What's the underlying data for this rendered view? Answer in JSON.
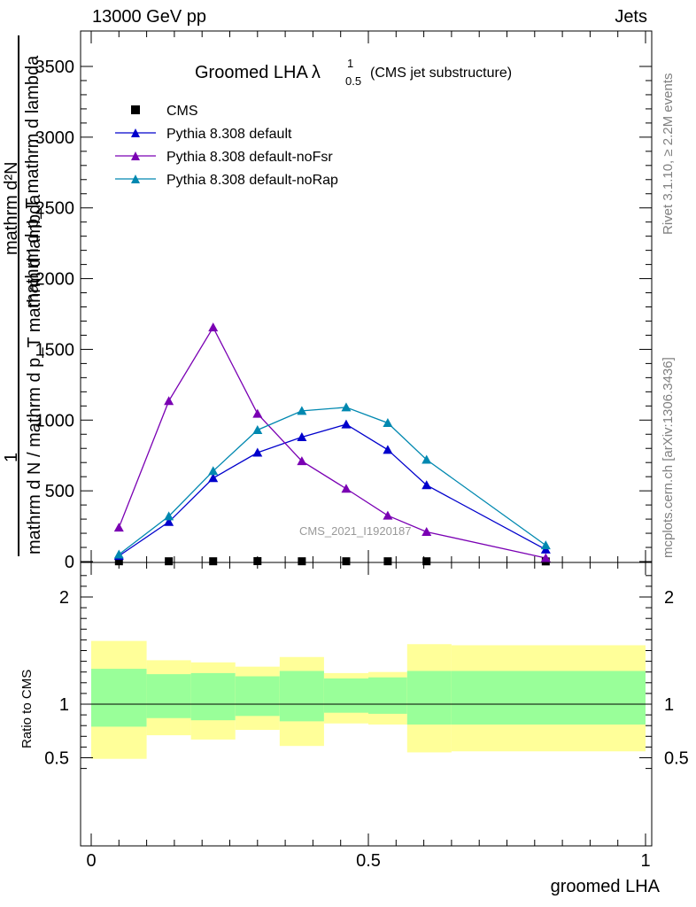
{
  "header": {
    "energy": "13000 GeV pp",
    "category": "Jets"
  },
  "side_notes": {
    "rivet": "Rivet 3.1.10, ≥ 2.2M events",
    "mcplots": "mcplots.cern.ch [arXiv:1306.3436]"
  },
  "main_plot": {
    "title_main": "Groomed LHA",
    "title_lambda": "λ",
    "title_sup": "1",
    "title_sub": "0.5",
    "title_suffix": "(CMS jet substructure)",
    "watermark": "CMS_2021_I1920187",
    "ylabel_top": "mathrm d²N",
    "ylabel_mid": "mathrm d p_T mathrm d lambda",
    "ylabel_one": "1",
    "ylabel_bottom": "mathrm d N / mathrm d p_T mathrm d lambda",
    "legend": [
      "CMS",
      "Pythia 8.308 default",
      "Pythia 8.308 default-noFsr",
      "Pythia 8.308 default-noRap"
    ]
  },
  "ratio_plot": {
    "ylabel": "Ratio to CMS"
  },
  "colors": {
    "cms": "#000000",
    "default": "#0000cc",
    "noFsr": "#7a00b3",
    "noRap": "#0088b0",
    "band_inner": "#99ff99",
    "band_outer": "#ffff99"
  },
  "chart_data": [
    {
      "type": "line",
      "title": "Groomed LHA λ^1_0.5 (CMS jet substructure)",
      "xlabel": "groomed LHA",
      "ylabel": "mathrm d²N / mathrm d p_T mathrm d lambda ; 1 / mathrm d N / mathrm d p_T mathrm d lambda",
      "xlim": [
        0,
        1
      ],
      "ylim": [
        0,
        3750
      ],
      "x_ticks": [
        "0",
        "0.5",
        "1"
      ],
      "y_ticks": [
        "0",
        "500",
        "1000",
        "1500",
        "2000",
        "2500",
        "3000",
        "3500"
      ],
      "y_tick_values": [
        0,
        500,
        1000,
        1500,
        2000,
        2500,
        3000,
        3500
      ],
      "legend_position": "top-left",
      "series": [
        {
          "name": "CMS",
          "marker": "square",
          "x": [
            0.05,
            0.14,
            0.22,
            0.3,
            0.38,
            0.46,
            0.535,
            0.605,
            0.82
          ],
          "y": [
            2,
            2,
            2,
            3,
            2,
            2,
            2,
            2,
            1
          ]
        },
        {
          "name": "Pythia 8.308 default",
          "marker": "triangle",
          "x": [
            0.05,
            0.14,
            0.22,
            0.3,
            0.38,
            0.46,
            0.535,
            0.605,
            0.82
          ],
          "y": [
            40,
            280,
            590,
            770,
            880,
            970,
            790,
            540,
            85
          ]
        },
        {
          "name": "Pythia 8.308 default-noFsr",
          "marker": "triangle",
          "x": [
            0.05,
            0.14,
            0.22,
            0.3,
            0.38,
            0.46,
            0.535,
            0.605,
            0.82
          ],
          "y": [
            240,
            1135,
            1655,
            1045,
            710,
            515,
            325,
            210,
            25
          ]
        },
        {
          "name": "Pythia 8.308 default-noRap",
          "marker": "triangle",
          "x": [
            0.05,
            0.14,
            0.22,
            0.3,
            0.38,
            0.46,
            0.535,
            0.605,
            0.82
          ],
          "y": [
            50,
            320,
            640,
            930,
            1065,
            1090,
            980,
            720,
            115
          ]
        }
      ]
    },
    {
      "type": "area",
      "ylabel": "Ratio to CMS",
      "xlabel": "groomed LHA",
      "xlim": [
        0,
        1
      ],
      "ylim": [
        0.3,
        2.3
      ],
      "x_ticks": [
        "0",
        "0.5",
        "1"
      ],
      "y_ticks": [
        "0.5",
        "1",
        "2"
      ],
      "y_tick_values": [
        0.5,
        1,
        2
      ],
      "reference_line": 1,
      "bins": [
        {
          "x0": 0.0,
          "x1": 0.1,
          "inner": [
            0.79,
            1.33
          ],
          "outer": [
            0.49,
            1.59
          ]
        },
        {
          "x0": 0.1,
          "x1": 0.18,
          "inner": [
            0.87,
            1.28
          ],
          "outer": [
            0.71,
            1.41
          ]
        },
        {
          "x0": 0.18,
          "x1": 0.26,
          "inner": [
            0.85,
            1.29
          ],
          "outer": [
            0.67,
            1.39
          ]
        },
        {
          "x0": 0.26,
          "x1": 0.34,
          "inner": [
            0.89,
            1.26
          ],
          "outer": [
            0.76,
            1.35
          ]
        },
        {
          "x0": 0.34,
          "x1": 0.42,
          "inner": [
            0.84,
            1.31
          ],
          "outer": [
            0.61,
            1.44
          ]
        },
        {
          "x0": 0.42,
          "x1": 0.5,
          "inner": [
            0.92,
            1.24
          ],
          "outer": [
            0.82,
            1.29
          ]
        },
        {
          "x0": 0.5,
          "x1": 0.57,
          "inner": [
            0.91,
            1.25
          ],
          "outer": [
            0.81,
            1.3
          ]
        },
        {
          "x0": 0.57,
          "x1": 0.65,
          "inner": [
            0.81,
            1.31
          ],
          "outer": [
            0.55,
            1.56
          ]
        },
        {
          "x0": 0.65,
          "x1": 1.0,
          "inner": [
            0.81,
            1.31
          ],
          "outer": [
            0.56,
            1.55
          ]
        }
      ]
    }
  ]
}
